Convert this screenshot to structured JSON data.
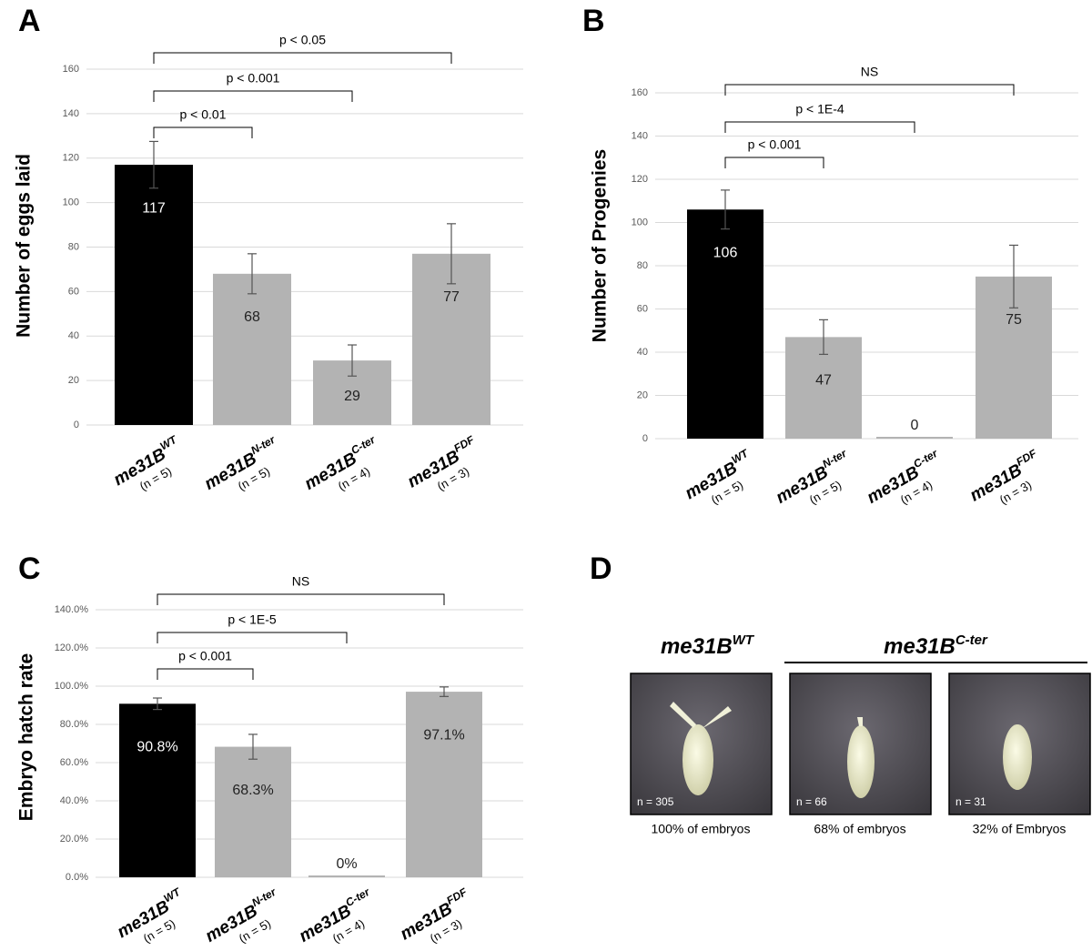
{
  "chart_data": [
    {
      "type": "bar",
      "panel": "A",
      "ylabel": "Number of eggs laid",
      "categories": [
        {
          "base": "me31B",
          "sup": "WT",
          "note": "(n = 5)"
        },
        {
          "base": "me31B",
          "sup": "N-ter",
          "note": "(n = 5)"
        },
        {
          "base": "me31B",
          "sup": "C-ter",
          "note": "(n = 4)"
        },
        {
          "base": "me31B",
          "sup": "FDF",
          "note": "(n = 3)"
        }
      ],
      "values": [
        117,
        68,
        29,
        77
      ],
      "errors": [
        10.5,
        9,
        7,
        13.5
      ],
      "colors": [
        "#000000",
        "#b3b3b3",
        "#b3b3b3",
        "#b3b3b3"
      ],
      "ylim": [
        0,
        160
      ],
      "yticks": [
        0,
        20,
        40,
        60,
        80,
        100,
        120,
        140,
        160
      ],
      "grid": true,
      "annotations": [
        "p < 0.01",
        "p < 0.001",
        "p < 0.05"
      ]
    },
    {
      "type": "bar",
      "panel": "B",
      "ylabel": "Number of Progenies",
      "categories": [
        {
          "base": "me31B",
          "sup": "WT",
          "note": "(n = 5)"
        },
        {
          "base": "me31B",
          "sup": "N-ter",
          "note": "(n = 5)"
        },
        {
          "base": "me31B",
          "sup": "C-ter",
          "note": "(n = 4)"
        },
        {
          "base": "me31B",
          "sup": "FDF",
          "note": "(n = 3)"
        }
      ],
      "values": [
        106,
        47,
        0,
        75
      ],
      "errors": [
        9,
        8,
        0,
        14.5
      ],
      "colors": [
        "#000000",
        "#b3b3b3",
        "#b3b3b3",
        "#b3b3b3"
      ],
      "ylim": [
        0,
        160
      ],
      "yticks": [
        0,
        20,
        40,
        60,
        80,
        100,
        120,
        140,
        160
      ],
      "grid": true,
      "annotations": [
        "p < 0.001",
        "p < 1E-4",
        "NS"
      ]
    },
    {
      "type": "bar",
      "panel": "C",
      "ylabel": "Embryo hatch rate",
      "categories": [
        {
          "base": "me31B",
          "sup": "WT",
          "note": "(n = 5)"
        },
        {
          "base": "me31B",
          "sup": "N-ter",
          "note": "(n = 5)"
        },
        {
          "base": "me31B",
          "sup": "C-ter",
          "note": "(n = 4)"
        },
        {
          "base": "me31B",
          "sup": "FDF",
          "note": "(n = 3)"
        }
      ],
      "values": [
        90.8,
        68.3,
        0,
        97.1
      ],
      "value_labels": [
        "90.8%",
        "68.3%",
        "0%",
        "97.1%"
      ],
      "errors": [
        3,
        6.5,
        0,
        2.5
      ],
      "colors": [
        "#000000",
        "#b3b3b3",
        "#b3b3b3",
        "#b3b3b3"
      ],
      "ylim": [
        0,
        140
      ],
      "yticks": [
        {
          "value": 0,
          "label": "0.0%"
        },
        {
          "value": 20,
          "label": "20.0%"
        },
        {
          "value": 40,
          "label": "40.0%"
        },
        {
          "value": 60,
          "label": "60.0%"
        },
        {
          "value": 80,
          "label": "80.0%"
        },
        {
          "value": 100,
          "label": "100.0%"
        },
        {
          "value": 120,
          "label": "120.0%"
        },
        {
          "value": 140,
          "label": "140.0%"
        }
      ],
      "grid": true,
      "annotations": [
        "p < 0.001",
        "p < 1E-5",
        "NS"
      ]
    }
  ],
  "panel_d": {
    "letter": "D",
    "groups": [
      {
        "base": "me31B",
        "sup": "WT"
      },
      {
        "base": "me31B",
        "sup": "C-ter"
      }
    ],
    "images": [
      {
        "n": "n = 305",
        "caption": "100% of embryos"
      },
      {
        "n": "n = 66",
        "caption": "68% of embryos"
      },
      {
        "n": "n = 31",
        "caption": "32% of Embryos"
      }
    ]
  }
}
